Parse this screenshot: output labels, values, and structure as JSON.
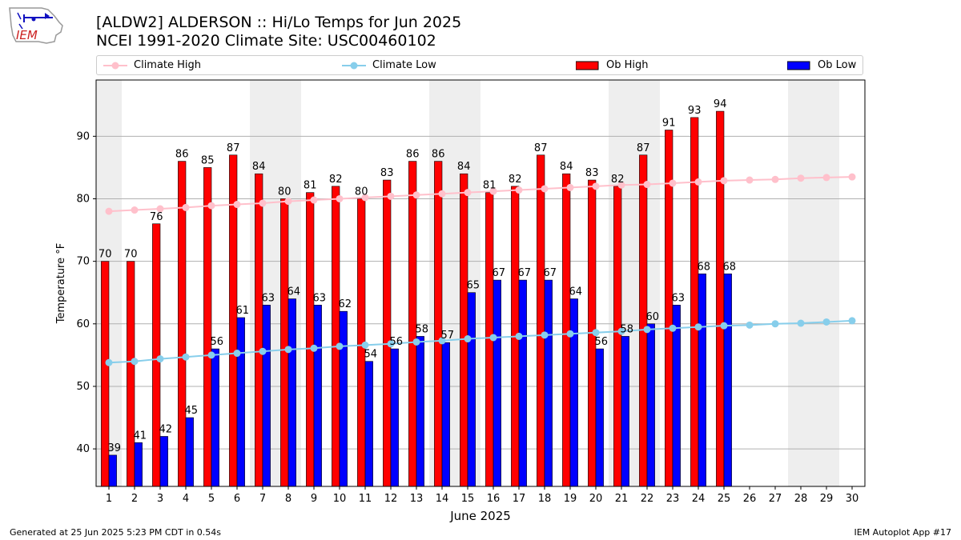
{
  "header": {
    "logo_text": "IEM",
    "title_line1": "[ALDW2] ALDERSON :: Hi/Lo Temps for Jun 2025",
    "title_line2": "NCEI 1991-2020 Climate Site: USC00460102"
  },
  "footer": {
    "generated": "Generated at 25 Jun 2025 5:23 PM CDT in 0.54s",
    "app": "IEM Autoplot App #17"
  },
  "colors": {
    "ob_high": "#ff0000",
    "ob_low": "#0000ff",
    "climate_high": "#ffc0cb",
    "climate_low": "#87ceeb",
    "weekend_shade": "#eeeeee",
    "grid": "#b0b0b0"
  },
  "chart_data": {
    "type": "bar",
    "xlabel": "June 2025",
    "ylabel": "Temperature °F",
    "ylim": [
      34,
      99
    ],
    "yticks": [
      40,
      50,
      60,
      70,
      80,
      90
    ],
    "grid": "horizontal",
    "legend_placement": "top",
    "categories": [
      "1",
      "2",
      "3",
      "4",
      "5",
      "6",
      "7",
      "8",
      "9",
      "10",
      "11",
      "12",
      "13",
      "14",
      "15",
      "16",
      "17",
      "18",
      "19",
      "20",
      "21",
      "22",
      "23",
      "24",
      "25",
      "26",
      "27",
      "28",
      "29",
      "30"
    ],
    "weekend_days": [
      1,
      7,
      8,
      14,
      15,
      21,
      22,
      28,
      29
    ],
    "series": [
      {
        "name": "Ob High",
        "kind": "bar",
        "values": [
          70,
          70,
          76,
          86,
          85,
          87,
          84,
          80,
          81,
          82,
          80,
          83,
          86,
          86,
          84,
          81,
          82,
          87,
          84,
          83,
          82,
          87,
          91,
          93,
          94,
          null,
          null,
          null,
          null,
          null
        ]
      },
      {
        "name": "Ob Low",
        "kind": "bar",
        "values": [
          39,
          41,
          42,
          45,
          56,
          61,
          63,
          64,
          63,
          62,
          54,
          56,
          58,
          57,
          65,
          67,
          67,
          67,
          64,
          56,
          58,
          60,
          63,
          68,
          68,
          null,
          null,
          null,
          null,
          null
        ]
      },
      {
        "name": "Climate High",
        "kind": "line",
        "values": [
          78.0,
          78.2,
          78.4,
          78.6,
          78.9,
          79.1,
          79.3,
          79.6,
          79.8,
          80.0,
          80.2,
          80.4,
          80.6,
          80.8,
          81.0,
          81.2,
          81.4,
          81.6,
          81.8,
          82.0,
          82.2,
          82.3,
          82.5,
          82.7,
          82.9,
          83.0,
          83.1,
          83.3,
          83.4,
          83.5
        ]
      },
      {
        "name": "Climate Low",
        "kind": "line",
        "values": [
          53.8,
          54.0,
          54.4,
          54.7,
          55.0,
          55.3,
          55.6,
          55.9,
          56.1,
          56.4,
          56.6,
          56.8,
          57.1,
          57.3,
          57.6,
          57.8,
          58.0,
          58.2,
          58.4,
          58.6,
          58.8,
          59.1,
          59.3,
          59.5,
          59.7,
          59.8,
          60.0,
          60.1,
          60.3,
          60.5
        ]
      }
    ]
  }
}
